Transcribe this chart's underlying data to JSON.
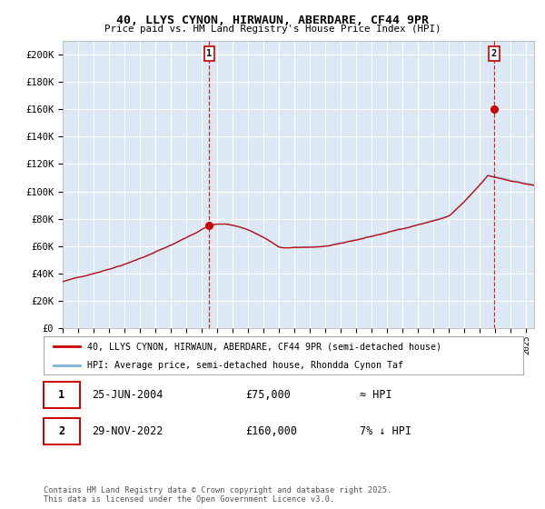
{
  "title": "40, LLYS CYNON, HIRWAUN, ABERDARE, CF44 9PR",
  "subtitle": "Price paid vs. HM Land Registry's House Price Index (HPI)",
  "background_color": "#dce9f5",
  "hpi_color": "#7db4d8",
  "price_color": "#cc0000",
  "grid_color": "#ffffff",
  "ylim": [
    0,
    210000
  ],
  "yticks": [
    0,
    20000,
    40000,
    60000,
    80000,
    100000,
    120000,
    140000,
    160000,
    180000,
    200000
  ],
  "ytick_labels": [
    "£0",
    "£20K",
    "£40K",
    "£60K",
    "£80K",
    "£100K",
    "£120K",
    "£140K",
    "£160K",
    "£180K",
    "£200K"
  ],
  "sale1_date": 2004.48,
  "sale1_price": 75000,
  "sale2_date": 2022.91,
  "sale2_price": 160000,
  "legend_line1": "40, LLYS CYNON, HIRWAUN, ABERDARE, CF44 9PR (semi-detached house)",
  "legend_line2": "HPI: Average price, semi-detached house, Rhondda Cynon Taf",
  "note1_date": "25-JUN-2004",
  "note1_price": "£75,000",
  "note1_hpi": "≈ HPI",
  "note2_date": "29-NOV-2022",
  "note2_price": "£160,000",
  "note2_hpi": "7% ↓ HPI",
  "footer": "Contains HM Land Registry data © Crown copyright and database right 2025.\nThis data is licensed under the Open Government Licence v3.0.",
  "xstart": 1995,
  "xend": 2025.5
}
